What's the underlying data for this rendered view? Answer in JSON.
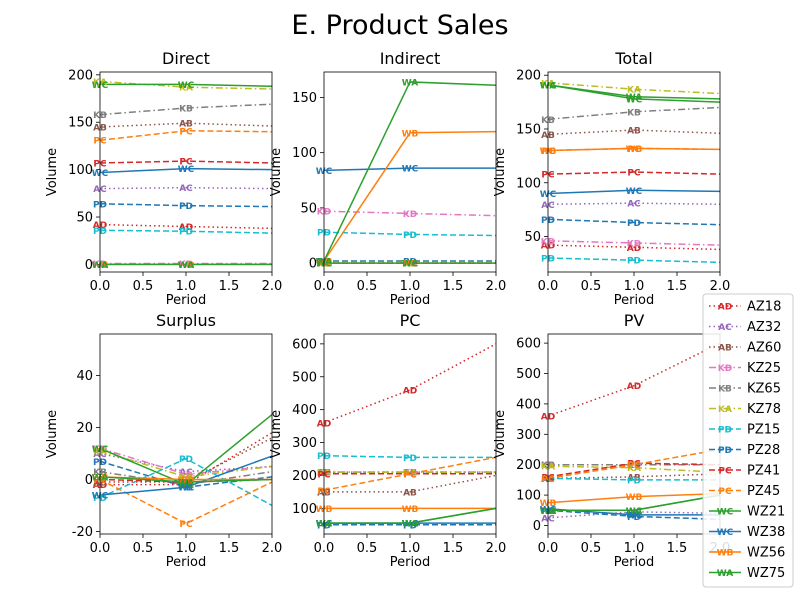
{
  "figure": {
    "title": "E. Product Sales"
  },
  "legend": {
    "placement": "right"
  },
  "chart_data": [
    {
      "type": "line",
      "title": "Direct",
      "xlabel": "Period",
      "ylabel": "Volume",
      "x": [
        0,
        1,
        2
      ],
      "xlim": [
        0,
        2
      ],
      "ylim": [
        -8,
        203
      ],
      "xticks": [
        "0.0",
        "0.5",
        "1.0",
        "1.5",
        "2.0"
      ],
      "yticks": [
        0,
        50,
        100,
        150,
        200
      ],
      "series": [
        {
          "name": "AZ18",
          "values": [
            42,
            40,
            38
          ]
        },
        {
          "name": "AZ32",
          "values": [
            80,
            81,
            80
          ]
        },
        {
          "name": "AZ60",
          "values": [
            145,
            149,
            146
          ]
        },
        {
          "name": "KZ25",
          "values": [
            1,
            1,
            1
          ]
        },
        {
          "name": "KZ65",
          "values": [
            158,
            165,
            169
          ]
        },
        {
          "name": "KZ78",
          "values": [
            193,
            187,
            185
          ]
        },
        {
          "name": "PZ15",
          "values": [
            36,
            35,
            33
          ]
        },
        {
          "name": "PZ28",
          "values": [
            64,
            62,
            61
          ]
        },
        {
          "name": "PZ41",
          "values": [
            107,
            109,
            107
          ]
        },
        {
          "name": "PZ45",
          "values": [
            131,
            141,
            140
          ]
        },
        {
          "name": "WZ21",
          "values": [
            190,
            190,
            188
          ]
        },
        {
          "name": "WZ38",
          "values": [
            97,
            101,
            100
          ]
        },
        {
          "name": "WZ56",
          "values": [
            0,
            0,
            0
          ]
        },
        {
          "name": "WZ75",
          "values": [
            0,
            0,
            0
          ]
        }
      ]
    },
    {
      "type": "line",
      "title": "Indirect",
      "xlabel": "Period",
      "ylabel": "Volume",
      "x": [
        0,
        1,
        2
      ],
      "xlim": [
        0,
        2
      ],
      "ylim": [
        -8,
        173
      ],
      "xticks": [
        "0.0",
        "0.5",
        "1.0",
        "1.5",
        "2.0"
      ],
      "yticks": [
        0,
        50,
        100,
        150
      ],
      "series": [
        {
          "name": "AZ18",
          "values": [
            0,
            0,
            0
          ]
        },
        {
          "name": "AZ32",
          "values": [
            0,
            0,
            0
          ]
        },
        {
          "name": "AZ60",
          "values": [
            0,
            0,
            0
          ]
        },
        {
          "name": "KZ25",
          "values": [
            47,
            45,
            43
          ]
        },
        {
          "name": "KZ65",
          "values": [
            0,
            0,
            0
          ]
        },
        {
          "name": "KZ78",
          "values": [
            0,
            0,
            0
          ]
        },
        {
          "name": "PZ15",
          "values": [
            28,
            26,
            25
          ]
        },
        {
          "name": "PZ28",
          "values": [
            2,
            2,
            2
          ]
        },
        {
          "name": "PZ41",
          "values": [
            0,
            0,
            0
          ]
        },
        {
          "name": "PZ45",
          "values": [
            0,
            0,
            0
          ]
        },
        {
          "name": "WZ21",
          "values": [
            0,
            0,
            0
          ]
        },
        {
          "name": "WZ38",
          "values": [
            84,
            86,
            86
          ]
        },
        {
          "name": "WZ56",
          "values": [
            2,
            118,
            119
          ]
        },
        {
          "name": "WZ75",
          "values": [
            2,
            164,
            161
          ]
        }
      ]
    },
    {
      "type": "line",
      "title": "Total",
      "xlabel": "Period",
      "ylabel": "Volume",
      "x": [
        0,
        1,
        2
      ],
      "xlim": [
        0,
        2
      ],
      "ylim": [
        17,
        203
      ],
      "xticks": [
        "0.0",
        "0.5",
        "1.0",
        "1.5",
        "2.0"
      ],
      "yticks": [
        50,
        100,
        150,
        200
      ],
      "series": [
        {
          "name": "AZ18",
          "values": [
            42,
            40,
            38
          ]
        },
        {
          "name": "AZ32",
          "values": [
            80,
            81,
            80
          ]
        },
        {
          "name": "AZ60",
          "values": [
            145,
            149,
            146
          ]
        },
        {
          "name": "KZ25",
          "values": [
            46,
            44,
            42
          ]
        },
        {
          "name": "KZ65",
          "values": [
            159,
            166,
            170
          ]
        },
        {
          "name": "KZ78",
          "values": [
            193,
            187,
            183
          ]
        },
        {
          "name": "PZ15",
          "values": [
            30,
            28,
            26
          ]
        },
        {
          "name": "PZ28",
          "values": [
            66,
            63,
            61
          ]
        },
        {
          "name": "PZ41",
          "values": [
            108,
            110,
            108
          ]
        },
        {
          "name": "PZ45",
          "values": [
            130,
            132,
            131
          ]
        },
        {
          "name": "WZ21",
          "values": [
            191,
            178,
            175
          ]
        },
        {
          "name": "WZ38",
          "values": [
            90,
            93,
            92
          ]
        },
        {
          "name": "WZ56",
          "values": [
            130,
            132,
            131
          ]
        },
        {
          "name": "WZ75",
          "values": [
            191,
            180,
            178
          ]
        }
      ]
    },
    {
      "type": "line",
      "title": "Surplus",
      "xlabel": "Period",
      "ylabel": "Volume",
      "x": [
        0,
        1,
        2
      ],
      "xlim": [
        0,
        2
      ],
      "ylim": [
        -21,
        56
      ],
      "xticks": [
        "0.0",
        "0.5",
        "1.0",
        "1.5",
        "2.0"
      ],
      "yticks": [
        -20,
        0,
        20,
        40
      ],
      "series": [
        {
          "name": "AZ18",
          "values": [
            -2,
            -2,
            18
          ]
        },
        {
          "name": "AZ32",
          "values": [
            10,
            3,
            5
          ]
        },
        {
          "name": "AZ60",
          "values": [
            -1,
            -1,
            16
          ]
        },
        {
          "name": "KZ25",
          "values": [
            12,
            2,
            5
          ]
        },
        {
          "name": "KZ65",
          "values": [
            3,
            -2,
            3
          ]
        },
        {
          "name": "KZ78",
          "values": [
            11,
            1,
            5
          ]
        },
        {
          "name": "PZ15",
          "values": [
            -7,
            8,
            -10
          ]
        },
        {
          "name": "PZ28",
          "values": [
            7,
            -3,
            1
          ]
        },
        {
          "name": "PZ41",
          "values": [
            0,
            -1,
            0
          ]
        },
        {
          "name": "PZ45",
          "values": [
            0,
            -17,
            -1
          ]
        },
        {
          "name": "WZ21",
          "values": [
            12,
            -2,
            25
          ]
        },
        {
          "name": "WZ38",
          "values": [
            -6,
            -3,
            9
          ]
        },
        {
          "name": "WZ56",
          "values": [
            1,
            0,
            0
          ]
        },
        {
          "name": "WZ75",
          "values": [
            1,
            -1,
            0
          ]
        }
      ]
    },
    {
      "type": "line",
      "title": "PC",
      "xlabel": "Period",
      "ylabel": "Volume",
      "x": [
        0,
        1,
        2
      ],
      "xlim": [
        0,
        2
      ],
      "ylim": [
        22,
        630
      ],
      "xticks": [
        "0.0",
        "0.5",
        "1.0",
        "1.5",
        "2.0"
      ],
      "yticks": [
        100,
        200,
        300,
        400,
        500,
        600
      ],
      "series": [
        {
          "name": "AZ18",
          "values": [
            360,
            460,
            600
          ]
        },
        {
          "name": "AZ32",
          "values": [
            210,
            210,
            210
          ]
        },
        {
          "name": "AZ60",
          "values": [
            150,
            150,
            200
          ]
        },
        {
          "name": "KZ25",
          "values": [
            210,
            210,
            210
          ]
        },
        {
          "name": "KZ65",
          "values": [
            210,
            210,
            210
          ]
        },
        {
          "name": "KZ78",
          "values": [
            210,
            210,
            210
          ]
        },
        {
          "name": "PZ15",
          "values": [
            260,
            255,
            255
          ]
        },
        {
          "name": "PZ28",
          "values": [
            50,
            50,
            50
          ]
        },
        {
          "name": "PZ41",
          "values": [
            205,
            205,
            205
          ]
        },
        {
          "name": "PZ45",
          "values": [
            155,
            205,
            255
          ]
        },
        {
          "name": "WZ21",
          "values": [
            55,
            55,
            100
          ]
        },
        {
          "name": "WZ38",
          "values": [
            55,
            55,
            55
          ]
        },
        {
          "name": "WZ56",
          "values": [
            100,
            100,
            100
          ]
        },
        {
          "name": "WZ75",
          "values": [
            55,
            55,
            100
          ]
        }
      ]
    },
    {
      "type": "line",
      "title": "PV",
      "xlabel": "Period",
      "ylabel": "Volume",
      "x": [
        0,
        1,
        2
      ],
      "xlim": [
        0,
        2
      ],
      "ylim": [
        -28,
        630
      ],
      "xticks": [
        "0.0",
        "0.5",
        "1.0",
        "1.5",
        "2.0"
      ],
      "yticks": [
        0,
        100,
        200,
        300,
        400,
        500,
        600
      ],
      "series": [
        {
          "name": "AZ18",
          "values": [
            360,
            460,
            600
          ]
        },
        {
          "name": "AZ32",
          "values": [
            25,
            45,
            40
          ]
        },
        {
          "name": "AZ60",
          "values": [
            155,
            160,
            170
          ]
        },
        {
          "name": "KZ25",
          "values": [
            200,
            200,
            200
          ]
        },
        {
          "name": "KZ65",
          "values": [
            200,
            200,
            200
          ]
        },
        {
          "name": "KZ78",
          "values": [
            195,
            190,
            175
          ]
        },
        {
          "name": "PZ15",
          "values": [
            155,
            150,
            150
          ]
        },
        {
          "name": "PZ28",
          "values": [
            50,
            30,
            20
          ]
        },
        {
          "name": "PZ41",
          "values": [
            160,
            205,
            200
          ]
        },
        {
          "name": "PZ45",
          "values": [
            155,
            200,
            250
          ]
        },
        {
          "name": "WZ21",
          "values": [
            50,
            50,
            100
          ]
        },
        {
          "name": "WZ38",
          "values": [
            55,
            35,
            35
          ]
        },
        {
          "name": "WZ56",
          "values": [
            75,
            95,
            105
          ]
        },
        {
          "name": "WZ75",
          "values": [
            50,
            50,
            100
          ]
        }
      ]
    }
  ],
  "series_styles": [
    {
      "name": "AZ18",
      "marker": "AD",
      "color": "#d62728",
      "dash": "dotted"
    },
    {
      "name": "AZ32",
      "marker": "AC",
      "color": "#9467bd",
      "dash": "dotted"
    },
    {
      "name": "AZ60",
      "marker": "AB",
      "color": "#8c564b",
      "dash": "dotted"
    },
    {
      "name": "KZ25",
      "marker": "KD",
      "color": "#e377c2",
      "dash": "dashdot"
    },
    {
      "name": "KZ65",
      "marker": "KB",
      "color": "#7f7f7f",
      "dash": "dashdot"
    },
    {
      "name": "KZ78",
      "marker": "KA",
      "color": "#bcbd22",
      "dash": "dashdot"
    },
    {
      "name": "PZ15",
      "marker": "PD",
      "color": "#17becf",
      "dash": "dashed"
    },
    {
      "name": "PZ28",
      "marker": "PD",
      "color": "#1f77b4",
      "dash": "dashed"
    },
    {
      "name": "PZ41",
      "marker": "PC",
      "color": "#d62728",
      "dash": "dashed"
    },
    {
      "name": "PZ45",
      "marker": "PC",
      "color": "#ff7f0e",
      "dash": "dashed"
    },
    {
      "name": "WZ21",
      "marker": "WC",
      "color": "#2ca02c",
      "dash": "solid"
    },
    {
      "name": "WZ38",
      "marker": "WC",
      "color": "#1f77b4",
      "dash": "solid"
    },
    {
      "name": "WZ56",
      "marker": "WB",
      "color": "#ff7f0e",
      "dash": "solid"
    },
    {
      "name": "WZ75",
      "marker": "WA",
      "color": "#2ca02c",
      "dash": "solid"
    }
  ]
}
